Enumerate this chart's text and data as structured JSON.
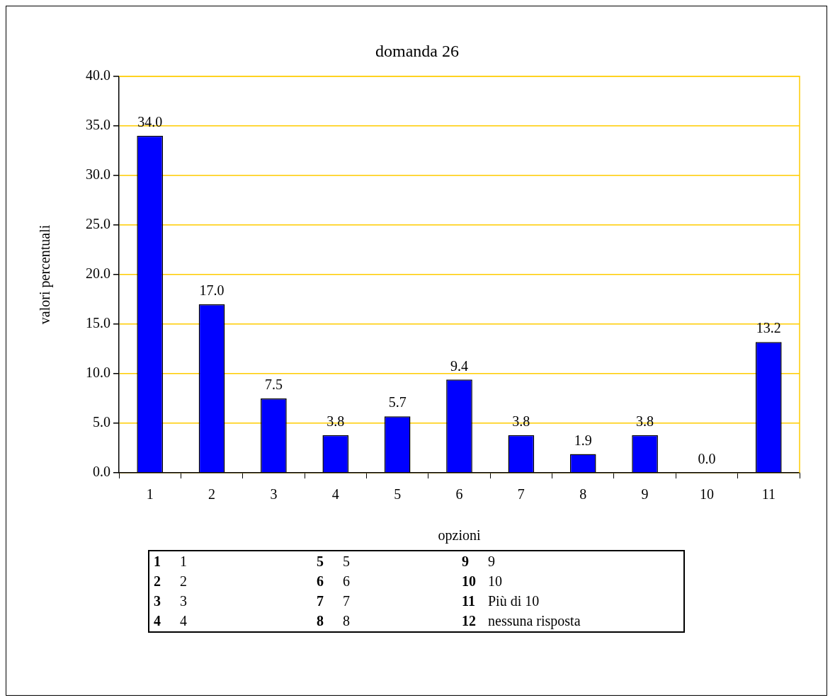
{
  "chart_data": {
    "type": "bar",
    "title": "domanda 26",
    "xlabel": "opzioni",
    "ylabel": "valori percentuali",
    "categories": [
      "1",
      "2",
      "3",
      "4",
      "5",
      "6",
      "7",
      "8",
      "9",
      "10",
      "11"
    ],
    "values": [
      34.0,
      17.0,
      7.5,
      3.8,
      5.7,
      9.4,
      3.8,
      1.9,
      3.8,
      0.0,
      13.2
    ],
    "value_labels": [
      "34.0",
      "17.0",
      "7.5",
      "3.8",
      "5.7",
      "9.4",
      "3.8",
      "1.9",
      "3.8",
      "0.0",
      "13.2"
    ],
    "color": "#0000ff",
    "ylim": [
      0,
      40
    ],
    "yticks": [
      {
        "value": 0,
        "label": "0.0"
      },
      {
        "value": 5,
        "label": "5.0"
      },
      {
        "value": 10,
        "label": "10.0"
      },
      {
        "value": 15,
        "label": "15.0"
      },
      {
        "value": 20,
        "label": "20.0"
      },
      {
        "value": 25,
        "label": "25.0"
      },
      {
        "value": 30,
        "label": "30.0"
      },
      {
        "value": 35,
        "label": "35.0"
      },
      {
        "value": 40,
        "label": "40.0"
      }
    ],
    "grid": "y",
    "annotations": [
      "1 1",
      "2 2",
      "3 3",
      "4 4",
      "5 5",
      "6 6",
      "7 7",
      "8 8",
      "9 9",
      "10 10",
      "11 Più di 10",
      "12 nessuna risposta"
    ]
  }
}
